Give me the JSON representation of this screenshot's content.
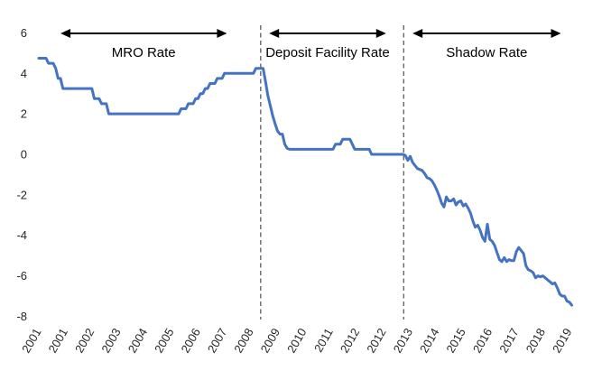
{
  "chart_data": {
    "type": "line",
    "title": "",
    "xlabel": "",
    "ylabel": "",
    "ylim": [
      -8,
      6
    ],
    "yticks": [
      6,
      4,
      2,
      0,
      -2,
      -4,
      -6,
      -8
    ],
    "grid": false,
    "legend": "none",
    "x_start": "2001-01",
    "x_freq": "monthly",
    "xticks": {
      "months": [
        0,
        11,
        22,
        33,
        44,
        55,
        66,
        77,
        88,
        99,
        110,
        121,
        132,
        143,
        154,
        165,
        176,
        187,
        198,
        209,
        220
      ],
      "labels": [
        "2001",
        "2001",
        "2002",
        "2003",
        "2004",
        "2005",
        "2006",
        "2007",
        "2008",
        "2009",
        "2010",
        "2011",
        "2012",
        "2012",
        "2013",
        "2014",
        "2015",
        "2016",
        "2017",
        "2018",
        "2019"
      ]
    },
    "series": [
      {
        "color": "#4472C4",
        "values": [
          4.75,
          4.75,
          4.75,
          4.75,
          4.5,
          4.5,
          4.5,
          4.25,
          3.75,
          3.75,
          3.25,
          3.25,
          3.25,
          3.25,
          3.25,
          3.25,
          3.25,
          3.25,
          3.25,
          3.25,
          3.25,
          3.25,
          3.25,
          2.75,
          2.75,
          2.75,
          2.5,
          2.5,
          2.5,
          2.0,
          2.0,
          2.0,
          2.0,
          2.0,
          2.0,
          2.0,
          2.0,
          2.0,
          2.0,
          2.0,
          2.0,
          2.0,
          2.0,
          2.0,
          2.0,
          2.0,
          2.0,
          2.0,
          2.0,
          2.0,
          2.0,
          2.0,
          2.0,
          2.0,
          2.0,
          2.0,
          2.0,
          2.0,
          2.0,
          2.25,
          2.25,
          2.25,
          2.5,
          2.5,
          2.5,
          2.75,
          2.75,
          3.0,
          3.0,
          3.25,
          3.25,
          3.5,
          3.5,
          3.5,
          3.75,
          3.75,
          3.75,
          4.0,
          4.0,
          4.0,
          4.0,
          4.0,
          4.0,
          4.0,
          4.0,
          4.0,
          4.0,
          4.0,
          4.0,
          4.0,
          4.25,
          4.25,
          4.25,
          4.25,
          3.6,
          2.9,
          2.4,
          1.9,
          1.5,
          1.15,
          1.0,
          1.0,
          0.5,
          0.3,
          0.25,
          0.25,
          0.25,
          0.25,
          0.25,
          0.25,
          0.25,
          0.25,
          0.25,
          0.25,
          0.25,
          0.25,
          0.25,
          0.25,
          0.25,
          0.25,
          0.25,
          0.25,
          0.25,
          0.5,
          0.5,
          0.5,
          0.75,
          0.75,
          0.75,
          0.75,
          0.5,
          0.25,
          0.25,
          0.25,
          0.25,
          0.25,
          0.25,
          0.25,
          0.0,
          0.0,
          0.0,
          0.0,
          0.0,
          0.0,
          0.0,
          0.0,
          0.0,
          0.0,
          0.0,
          0.0,
          0.0,
          0.0,
          -0.05,
          -0.3,
          -0.1,
          -0.4,
          -0.55,
          -0.7,
          -0.75,
          -0.8,
          -0.95,
          -1.15,
          -1.2,
          -1.3,
          -1.5,
          -1.75,
          -2.05,
          -2.4,
          -2.6,
          -2.1,
          -2.3,
          -2.3,
          -2.2,
          -2.5,
          -2.35,
          -2.3,
          -2.55,
          -2.45,
          -2.65,
          -2.9,
          -3.3,
          -3.6,
          -3.5,
          -3.75,
          -4.1,
          -4.3,
          -3.45,
          -4.2,
          -4.3,
          -4.5,
          -4.85,
          -5.2,
          -5.3,
          -5.1,
          -5.3,
          -5.2,
          -5.25,
          -5.25,
          -4.8,
          -4.6,
          -4.75,
          -4.9,
          -5.5,
          -5.7,
          -5.75,
          -5.85,
          -6.1,
          -6.0,
          -6.05,
          -6.0,
          -6.1,
          -6.2,
          -6.3,
          -6.4,
          -6.35,
          -6.6,
          -6.9,
          -7.0,
          -7.0,
          -7.25,
          -7.3,
          -7.45
        ]
      }
    ],
    "dividers": [
      {
        "month": 92
      },
      {
        "month": 151.3
      }
    ],
    "regions": [
      {
        "label": "MRO Rate",
        "start_month": 9,
        "end_month": 78
      },
      {
        "label": "Deposit Facility Rate",
        "start_month": 95.5,
        "end_month": 144
      },
      {
        "label": "Shadow Rate",
        "start_month": 155,
        "end_month": 216.5
      }
    ]
  },
  "colors": {
    "line": "#4472C4",
    "divider": "#595959",
    "arrow": "#000000",
    "tick_text": "#262626",
    "background": "#ffffff"
  }
}
